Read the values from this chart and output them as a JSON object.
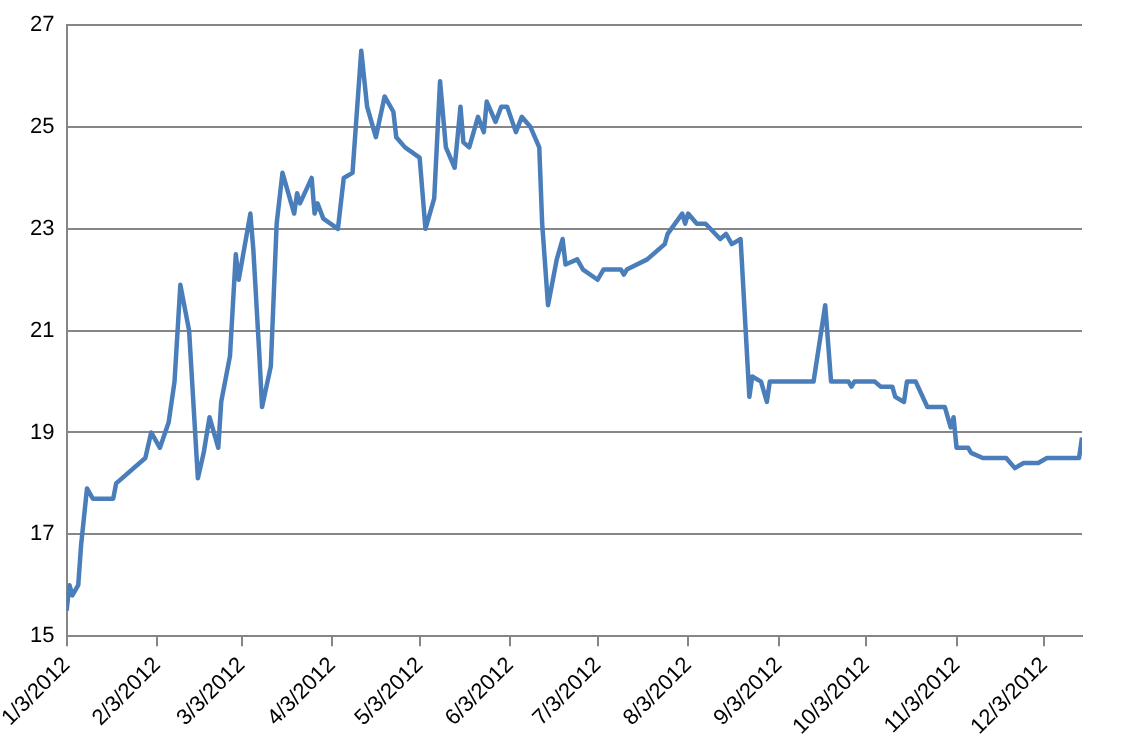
{
  "chart_data": {
    "type": "line",
    "x": [
      "2012-01-03",
      "2012-01-04",
      "2012-01-05",
      "2012-01-07",
      "2012-01-08",
      "2012-01-10",
      "2012-01-12",
      "2012-01-13",
      "2012-01-19",
      "2012-01-20",
      "2012-01-30",
      "2012-02-01",
      "2012-02-04",
      "2012-02-07",
      "2012-02-09",
      "2012-02-11",
      "2012-02-14",
      "2012-02-17",
      "2012-02-19",
      "2012-02-21",
      "2012-02-24",
      "2012-02-25",
      "2012-02-28",
      "2012-03-01",
      "2012-03-02",
      "2012-03-06",
      "2012-03-07",
      "2012-03-09",
      "2012-03-10",
      "2012-03-13",
      "2012-03-15",
      "2012-03-17",
      "2012-03-21",
      "2012-03-22",
      "2012-03-23",
      "2012-03-27",
      "2012-03-28",
      "2012-03-29",
      "2012-03-31",
      "2012-04-05",
      "2012-04-07",
      "2012-04-10",
      "2012-04-13",
      "2012-04-15",
      "2012-04-18",
      "2012-04-21",
      "2012-04-24",
      "2012-04-25",
      "2012-04-28",
      "2012-05-03",
      "2012-05-05",
      "2012-05-08",
      "2012-05-10",
      "2012-05-12",
      "2012-05-15",
      "2012-05-17",
      "2012-05-18",
      "2012-05-20",
      "2012-05-23",
      "2012-05-25",
      "2012-05-26",
      "2012-05-29",
      "2012-05-31",
      "2012-06-02",
      "2012-06-05",
      "2012-06-07",
      "2012-06-10",
      "2012-06-13",
      "2012-06-14",
      "2012-06-16",
      "2012-06-19",
      "2012-06-21",
      "2012-06-22",
      "2012-06-26",
      "2012-06-28",
      "2012-07-03",
      "2012-07-05",
      "2012-07-11",
      "2012-07-12",
      "2012-07-13",
      "2012-07-20",
      "2012-07-26",
      "2012-07-27",
      "2012-08-01",
      "2012-08-02",
      "2012-08-03",
      "2012-08-06",
      "2012-08-09",
      "2012-08-14",
      "2012-08-16",
      "2012-08-18",
      "2012-08-21",
      "2012-08-24",
      "2012-08-25",
      "2012-08-28",
      "2012-08-30",
      "2012-08-31",
      "2012-09-15",
      "2012-09-19",
      "2012-09-21",
      "2012-09-27",
      "2012-09-28",
      "2012-09-29",
      "2012-10-06",
      "2012-10-08",
      "2012-10-12",
      "2012-10-13",
      "2012-10-16",
      "2012-10-17",
      "2012-10-20",
      "2012-10-24",
      "2012-10-30",
      "2012-11-01",
      "2012-11-02",
      "2012-11-03",
      "2012-11-07",
      "2012-11-08",
      "2012-11-12",
      "2012-11-20",
      "2012-11-23",
      "2012-11-26",
      "2012-11-28",
      "2012-12-01",
      "2012-12-04",
      "2012-12-15",
      "2012-12-16"
    ],
    "series": [
      {
        "color": "#4a7ebb",
        "values": [
          15.5,
          16.0,
          15.8,
          16.0,
          16.8,
          17.9,
          17.7,
          17.7,
          17.7,
          18.0,
          18.5,
          19.0,
          18.7,
          19.2,
          20.0,
          21.9,
          21.0,
          18.1,
          18.6,
          19.3,
          18.7,
          19.6,
          20.5,
          22.5,
          22.0,
          23.3,
          22.6,
          20.6,
          19.5,
          20.3,
          23.1,
          24.1,
          23.3,
          23.7,
          23.5,
          24.0,
          23.3,
          23.5,
          23.2,
          23.0,
          24.0,
          24.1,
          26.5,
          25.4,
          24.8,
          25.6,
          25.3,
          24.8,
          24.6,
          24.4,
          23.0,
          23.6,
          25.9,
          24.6,
          24.2,
          25.4,
          24.7,
          24.6,
          25.2,
          24.9,
          25.5,
          25.1,
          25.4,
          25.4,
          24.9,
          25.2,
          25.0,
          24.6,
          23.1,
          21.5,
          22.4,
          22.8,
          22.3,
          22.4,
          22.2,
          22.0,
          22.2,
          22.2,
          22.1,
          22.2,
          22.4,
          22.7,
          22.9,
          23.3,
          23.1,
          23.3,
          23.1,
          23.1,
          22.8,
          22.9,
          22.7,
          22.8,
          19.7,
          20.1,
          20.0,
          19.6,
          20.0,
          20.0,
          21.5,
          20.0,
          20.0,
          19.9,
          20.0,
          20.0,
          19.9,
          19.9,
          19.7,
          19.6,
          20.0,
          20.0,
          19.5,
          19.5,
          19.1,
          19.3,
          18.7,
          18.7,
          18.6,
          18.5,
          18.5,
          18.3,
          18.4,
          18.4,
          18.4,
          18.5,
          18.5,
          18.9
        ]
      }
    ],
    "xlim": [
      "2012-01-03",
      "2012-12-16"
    ],
    "xticks": [
      {
        "value": "2012-01-03",
        "label": "1/3/2012"
      },
      {
        "value": "2012-02-03",
        "label": "2/3/2012"
      },
      {
        "value": "2012-03-03",
        "label": "3/3/2012"
      },
      {
        "value": "2012-04-03",
        "label": "4/3/2012"
      },
      {
        "value": "2012-05-03",
        "label": "5/3/2012"
      },
      {
        "value": "2012-06-03",
        "label": "6/3/2012"
      },
      {
        "value": "2012-07-03",
        "label": "7/3/2012"
      },
      {
        "value": "2012-08-03",
        "label": "8/3/2012"
      },
      {
        "value": "2012-09-03",
        "label": "9/3/2012"
      },
      {
        "value": "2012-10-03",
        "label": "10/3/2012"
      },
      {
        "value": "2012-11-03",
        "label": "11/3/2012"
      },
      {
        "value": "2012-12-03",
        "label": "12/3/2012"
      }
    ],
    "ylim": [
      15,
      27
    ],
    "yticks": [
      15,
      17,
      19,
      21,
      23,
      25,
      27
    ],
    "grid": "y",
    "legend": false,
    "marker": "none",
    "line_style": "solid"
  }
}
